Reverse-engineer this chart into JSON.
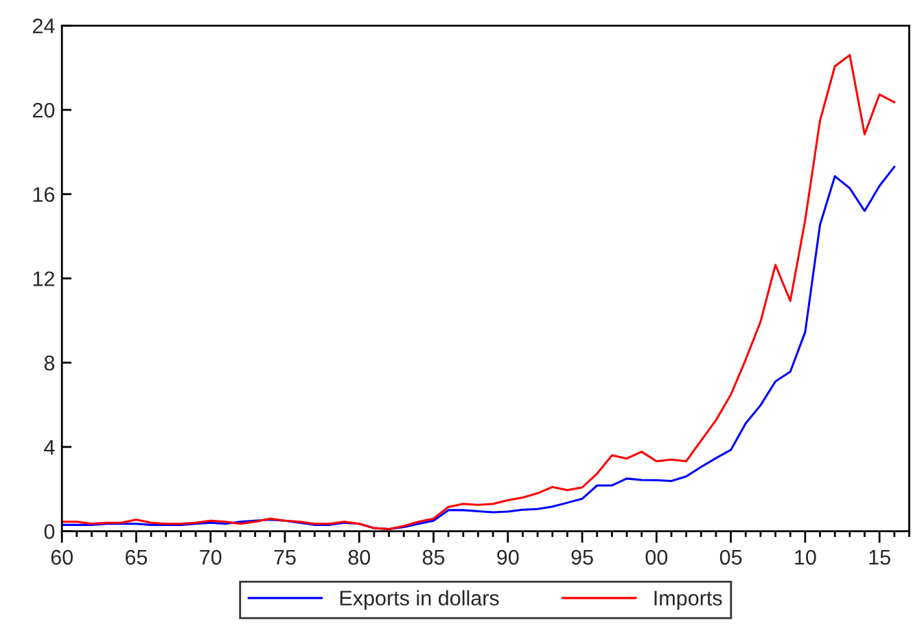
{
  "chart_data": {
    "type": "line",
    "x": [
      1960,
      1961,
      1962,
      1963,
      1964,
      1965,
      1966,
      1967,
      1968,
      1969,
      1970,
      1971,
      1972,
      1973,
      1974,
      1975,
      1976,
      1977,
      1978,
      1979,
      1980,
      1981,
      1982,
      1983,
      1984,
      1985,
      1986,
      1987,
      1988,
      1989,
      1990,
      1991,
      1992,
      1993,
      1994,
      1995,
      1996,
      1997,
      1998,
      1999,
      2000,
      2001,
      2002,
      2003,
      2004,
      2005,
      2006,
      2007,
      2008,
      2009,
      2010,
      2011,
      2012,
      2013,
      2014,
      2015,
      2016
    ],
    "series": [
      {
        "name": "Exports in dollars",
        "color": "#0000ff",
        "values": [
          0.3,
          0.3,
          0.3,
          0.35,
          0.35,
          0.35,
          0.3,
          0.3,
          0.3,
          0.35,
          0.4,
          0.35,
          0.45,
          0.5,
          0.55,
          0.5,
          0.4,
          0.3,
          0.3,
          0.4,
          0.35,
          0.15,
          0.1,
          0.2,
          0.35,
          0.5,
          1.0,
          1.0,
          0.95,
          0.9,
          0.93,
          1.02,
          1.05,
          1.17,
          1.35,
          1.54,
          2.17,
          2.17,
          2.5,
          2.43,
          2.42,
          2.38,
          2.6,
          3.05,
          3.47,
          3.86,
          5.12,
          5.98,
          7.11,
          7.57,
          9.45,
          14.55,
          16.85,
          16.28,
          15.2,
          16.39,
          17.3
        ]
      },
      {
        "name": "Imports",
        "color": "#ff0000",
        "values": [
          0.45,
          0.45,
          0.35,
          0.4,
          0.4,
          0.55,
          0.4,
          0.35,
          0.35,
          0.4,
          0.5,
          0.45,
          0.35,
          0.45,
          0.6,
          0.5,
          0.45,
          0.35,
          0.35,
          0.45,
          0.35,
          0.15,
          0.1,
          0.25,
          0.45,
          0.6,
          1.15,
          1.3,
          1.25,
          1.3,
          1.47,
          1.6,
          1.8,
          2.1,
          1.95,
          2.08,
          2.73,
          3.6,
          3.45,
          3.77,
          3.32,
          3.4,
          3.32,
          4.3,
          5.27,
          6.48,
          8.15,
          9.95,
          12.64,
          10.93,
          14.76,
          19.49,
          22.07,
          22.6,
          18.84,
          20.73,
          20.36
        ]
      }
    ],
    "xlim": [
      1960,
      2017
    ],
    "xticks": [
      {
        "value": 1960,
        "label": "60"
      },
      {
        "value": 1961,
        "label": null
      },
      {
        "value": 1962,
        "label": null
      },
      {
        "value": 1963,
        "label": null
      },
      {
        "value": 1964,
        "label": null
      },
      {
        "value": 1965,
        "label": "65"
      },
      {
        "value": 1966,
        "label": null
      },
      {
        "value": 1967,
        "label": null
      },
      {
        "value": 1968,
        "label": null
      },
      {
        "value": 1969,
        "label": null
      },
      {
        "value": 1970,
        "label": "70"
      },
      {
        "value": 1971,
        "label": null
      },
      {
        "value": 1972,
        "label": null
      },
      {
        "value": 1973,
        "label": null
      },
      {
        "value": 1974,
        "label": null
      },
      {
        "value": 1975,
        "label": "75"
      },
      {
        "value": 1976,
        "label": null
      },
      {
        "value": 1977,
        "label": null
      },
      {
        "value": 1978,
        "label": null
      },
      {
        "value": 1979,
        "label": null
      },
      {
        "value": 1980,
        "label": "80"
      },
      {
        "value": 1981,
        "label": null
      },
      {
        "value": 1982,
        "label": null
      },
      {
        "value": 1983,
        "label": null
      },
      {
        "value": 1984,
        "label": null
      },
      {
        "value": 1985,
        "label": "85"
      },
      {
        "value": 1986,
        "label": null
      },
      {
        "value": 1987,
        "label": null
      },
      {
        "value": 1988,
        "label": null
      },
      {
        "value": 1989,
        "label": null
      },
      {
        "value": 1990,
        "label": "90"
      },
      {
        "value": 1991,
        "label": null
      },
      {
        "value": 1992,
        "label": null
      },
      {
        "value": 1993,
        "label": null
      },
      {
        "value": 1994,
        "label": null
      },
      {
        "value": 1995,
        "label": "95"
      },
      {
        "value": 1996,
        "label": null
      },
      {
        "value": 1997,
        "label": null
      },
      {
        "value": 1998,
        "label": null
      },
      {
        "value": 1999,
        "label": null
      },
      {
        "value": 2000,
        "label": "00"
      },
      {
        "value": 2001,
        "label": null
      },
      {
        "value": 2002,
        "label": null
      },
      {
        "value": 2003,
        "label": null
      },
      {
        "value": 2004,
        "label": null
      },
      {
        "value": 2005,
        "label": "05"
      },
      {
        "value": 2006,
        "label": null
      },
      {
        "value": 2007,
        "label": null
      },
      {
        "value": 2008,
        "label": null
      },
      {
        "value": 2009,
        "label": null
      },
      {
        "value": 2010,
        "label": "10"
      },
      {
        "value": 2011,
        "label": null
      },
      {
        "value": 2012,
        "label": null
      },
      {
        "value": 2013,
        "label": null
      },
      {
        "value": 2014,
        "label": null
      },
      {
        "value": 2015,
        "label": "15"
      },
      {
        "value": 2016,
        "label": null
      },
      {
        "value": 2017,
        "label": null
      }
    ],
    "ylim": [
      0,
      24
    ],
    "yticks": [
      0,
      4,
      8,
      12,
      16,
      20,
      24
    ],
    "grid": false,
    "legend": "bottom",
    "marker": "none",
    "line_style": "solid"
  }
}
